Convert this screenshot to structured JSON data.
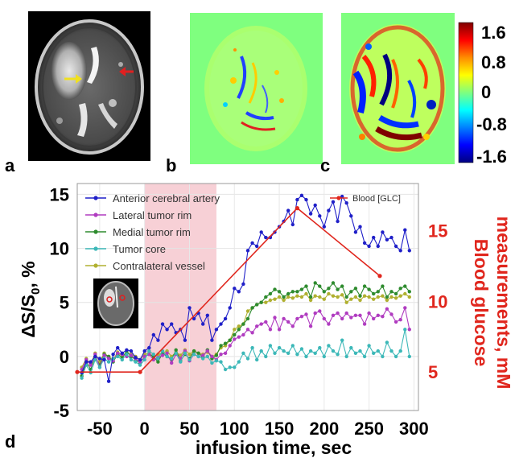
{
  "panels": {
    "a": "a",
    "b": "b",
    "c": "c",
    "d": "d"
  },
  "colorbar": {
    "ticks": [
      "1.6",
      "0.8",
      "0",
      "-0.8",
      "-1.6"
    ],
    "stops": [
      "#7f0000",
      "#ff0000",
      "#ff8c00",
      "#ffff00",
      "#7fff7f",
      "#00ffff",
      "#0080ff",
      "#0000ff",
      "#00007f"
    ]
  },
  "colors": {
    "anterior": "#1f1fc8",
    "lateral": "#b03cc0",
    "medial": "#2e8b2e",
    "core": "#3cb8b8",
    "contralateral": "#b0b030",
    "blood": "#e0261d",
    "infusion_band": "#f7d0d6"
  },
  "chart_data": {
    "type": "line",
    "xlabel": "infusion time, sec",
    "ylabel": "ΔS/S0, %",
    "ylabel_parts": {
      "main": "ΔS/S",
      "sub": "0",
      "tail": ", %"
    },
    "y2label_line1": "Blood glucose",
    "y2label_line2": "measurements, mM",
    "xlim": [
      -75,
      305
    ],
    "ylim": [
      -5,
      16
    ],
    "y2lim": [
      2.28,
      18.34
    ],
    "xticks": [
      -50,
      0,
      50,
      100,
      150,
      200,
      250,
      300
    ],
    "yticks": [
      -5,
      0,
      5,
      10,
      15
    ],
    "y2ticks": [
      5,
      10,
      15
    ],
    "infusion_window": [
      0,
      80
    ],
    "legend_placement": "top-left",
    "x": [
      -70,
      -65,
      -60,
      -55,
      -50,
      -45,
      -40,
      -35,
      -30,
      -25,
      -20,
      -15,
      -10,
      -5,
      0,
      5,
      10,
      15,
      20,
      25,
      30,
      35,
      40,
      45,
      50,
      55,
      60,
      65,
      70,
      75,
      80,
      85,
      90,
      95,
      100,
      105,
      110,
      115,
      120,
      125,
      130,
      135,
      140,
      145,
      150,
      155,
      160,
      165,
      170,
      175,
      180,
      185,
      190,
      195,
      200,
      205,
      210,
      215,
      220,
      225,
      230,
      235,
      240,
      245,
      250,
      255,
      260,
      265,
      270,
      275,
      280,
      285,
      290,
      295
    ],
    "series": [
      {
        "name": "Anterior cerebral artery",
        "color_key": "anterior",
        "axis": "left",
        "values": [
          -1.5,
          -0.5,
          -0.5,
          0.0,
          -0.2,
          -0.3,
          -2.3,
          0.2,
          0.8,
          0.3,
          0.6,
          0.5,
          -0.1,
          -0.3,
          0.5,
          0.8,
          2.0,
          1.5,
          3.0,
          2.5,
          3.0,
          2.2,
          2.5,
          1.5,
          4.5,
          3.5,
          4.0,
          3.0,
          3.8,
          1.5,
          2.5,
          3.0,
          3.5,
          4.5,
          6.3,
          6.0,
          6.7,
          9.8,
          10.5,
          10.2,
          11.5,
          11.0,
          11.0,
          11.5,
          12.0,
          12.5,
          13.5,
          12.2,
          14.5,
          14.9,
          14.5,
          13.2,
          14.0,
          13.0,
          12.0,
          13.5,
          14.3,
          12.5,
          14.8,
          14.2,
          13.0,
          11.5,
          12.0,
          10.5,
          10.2,
          11.0,
          10.2,
          11.5,
          10.8,
          11.0,
          10.2,
          9.8,
          11.7,
          9.8
        ]
      },
      {
        "name": "Lateral tumor rim",
        "color_key": "lateral",
        "axis": "left",
        "values": [
          -1.2,
          -0.3,
          -0.8,
          0.2,
          -1.0,
          0.1,
          -0.2,
          -0.4,
          0.3,
          0.2,
          0.0,
          0.1,
          -0.2,
          -0.5,
          0.0,
          0.2,
          -0.3,
          -0.1,
          0.1,
          0.3,
          -0.6,
          0.2,
          -0.2,
          0.5,
          -0.4,
          0.2,
          0.0,
          0.1,
          0.5,
          0.0,
          -0.3,
          0.2,
          0.3,
          1.0,
          1.6,
          1.8,
          2.0,
          2.5,
          2.2,
          2.8,
          3.0,
          3.2,
          2.5,
          3.6,
          2.5,
          3.5,
          3.2,
          2.8,
          3.5,
          3.7,
          3.9,
          2.8,
          4.0,
          4.2,
          3.5,
          3.0,
          3.8,
          4.0,
          3.5,
          4.0,
          3.6,
          3.8,
          3.8,
          3.0,
          4.0,
          3.5,
          3.8,
          3.7,
          4.4,
          3.9,
          3.2,
          3.4,
          4.5,
          2.5
        ]
      },
      {
        "name": "Medial tumor rim",
        "color_key": "medial",
        "axis": "left",
        "values": [
          -1.8,
          -0.5,
          -1.2,
          0.0,
          -0.8,
          0.2,
          0.0,
          -0.5,
          0.2,
          -0.1,
          0.5,
          0.0,
          -0.3,
          -0.6,
          0.0,
          0.2,
          0.0,
          -0.5,
          0.3,
          0.0,
          -0.3,
          0.6,
          -0.4,
          0.2,
          -0.2,
          0.5,
          0.3,
          0.0,
          0.6,
          -0.2,
          0.1,
          1.0,
          1.2,
          1.5,
          2.0,
          2.5,
          3.0,
          3.5,
          4.5,
          4.8,
          5.0,
          5.5,
          5.8,
          6.2,
          6.0,
          5.5,
          5.8,
          6.0,
          6.0,
          6.2,
          6.5,
          5.5,
          6.8,
          6.5,
          6.0,
          6.3,
          6.8,
          6.2,
          6.5,
          5.5,
          6.0,
          6.3,
          5.6,
          6.5,
          6.2,
          5.8,
          6.0,
          6.5,
          5.5,
          6.0,
          5.8,
          6.3,
          6.5,
          6.0
        ]
      },
      {
        "name": "Tumor core",
        "color_key": "core",
        "axis": "left",
        "values": [
          -2.0,
          -0.8,
          -1.5,
          -0.3,
          -1.0,
          -0.2,
          -0.5,
          -0.2,
          0.0,
          -0.3,
          0.2,
          -0.3,
          -0.5,
          -0.8,
          -0.3,
          0.5,
          0.2,
          -0.2,
          0.5,
          0.0,
          -0.2,
          0.3,
          -0.5,
          0.3,
          -0.3,
          0.2,
          0.0,
          -0.2,
          0.0,
          -0.6,
          -0.4,
          -0.5,
          -1.2,
          -1.0,
          -1.0,
          -0.5,
          0.3,
          -0.2,
          0.8,
          -0.3,
          0.5,
          0.0,
          1.0,
          0.3,
          0.8,
          0.5,
          0.3,
          1.0,
          0.2,
          0.7,
          0.0,
          0.5,
          0.3,
          0.8,
          0.0,
          1.0,
          0.5,
          0.2,
          1.5,
          0.0,
          0.8,
          0.3,
          0.5,
          0.0,
          1.0,
          0.3,
          0.5,
          0.0,
          1.3,
          0.5,
          0.0,
          0.5,
          2.5,
          0.0
        ]
      },
      {
        "name": "Contralateral vessel",
        "color_key": "contralateral",
        "axis": "left",
        "values": [
          -1.0,
          -0.2,
          -0.7,
          0.3,
          -0.5,
          0.3,
          0.0,
          -0.3,
          0.4,
          0.0,
          0.3,
          0.2,
          0.0,
          -0.3,
          0.2,
          0.3,
          0.0,
          0.2,
          0.3,
          0.5,
          0.0,
          0.4,
          0.1,
          0.6,
          0.2,
          0.5,
          0.3,
          0.2,
          0.4,
          0.0,
          0.2,
          0.8,
          1.0,
          1.5,
          2.5,
          2.8,
          3.0,
          4.2,
          4.5,
          4.8,
          5.0,
          5.0,
          5.2,
          5.3,
          5.5,
          5.2,
          5.5,
          5.4,
          5.6,
          5.5,
          5.8,
          5.2,
          5.6,
          5.5,
          5.3,
          5.8,
          5.6,
          5.5,
          5.7,
          5.0,
          5.3,
          5.5,
          5.2,
          5.6,
          5.5,
          5.3,
          5.5,
          5.6,
          5.2,
          5.5,
          5.4,
          5.6,
          5.8,
          5.5
        ]
      },
      {
        "name": "Blood [GLC]",
        "color_key": "blood",
        "axis": "right",
        "x": [
          -75,
          -5,
          170,
          262
        ],
        "values": [
          5.0,
          5.0,
          16.6,
          11.8
        ]
      }
    ]
  }
}
